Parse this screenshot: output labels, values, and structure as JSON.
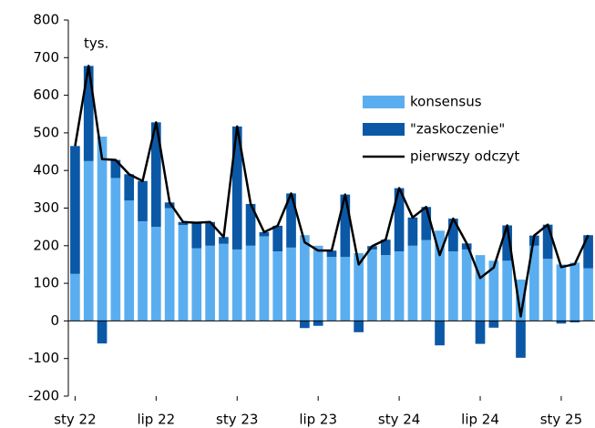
{
  "chart_data": {
    "type": "bar",
    "annotation": "tys.",
    "categories": [
      "sty 22",
      null,
      null,
      null,
      null,
      null,
      "lip 22",
      null,
      null,
      null,
      null,
      null,
      "sty 23",
      null,
      null,
      null,
      null,
      null,
      "lip 23",
      null,
      null,
      null,
      null,
      null,
      "sty 24",
      null,
      null,
      null,
      null,
      null,
      "lip 24",
      null,
      null,
      null,
      null,
      null,
      "sty 25",
      null,
      null
    ],
    "series": [
      {
        "name": "konsensus",
        "color": "#5aaef0",
        "type": "bar",
        "values": [
          125,
          425,
          490,
          380,
          320,
          265,
          250,
          300,
          255,
          193,
          200,
          205,
          190,
          200,
          225,
          185,
          195,
          228,
          200,
          170,
          170,
          180,
          190,
          175,
          185,
          200,
          215,
          240,
          185,
          190,
          175,
          160,
          160,
          110,
          200,
          165,
          150,
          155,
          140
        ]
      },
      {
        "name": "\"zaskoczenie\"",
        "color": "#0b58a6",
        "type": "bar",
        "values": [
          340,
          253,
          -60,
          48,
          70,
          107,
          278,
          15,
          8,
          68,
          63,
          18,
          327,
          111,
          11,
          68,
          144,
          -19,
          -13,
          17,
          166,
          -30,
          9,
          41,
          168,
          75,
          88,
          -65,
          87,
          16,
          -61,
          -18,
          94,
          -98,
          27,
          91,
          -7,
          -4,
          88
        ]
      },
      {
        "name": "pierwszy odczyt",
        "color": "#000000",
        "type": "line",
        "values": [
          465,
          678,
          430,
          428,
          390,
          372,
          528,
          315,
          263,
          261,
          263,
          223,
          517,
          311,
          236,
          253,
          339,
          209,
          187,
          187,
          336,
          150,
          199,
          216,
          353,
          275,
          303,
          175,
          272,
          206,
          114,
          142,
          254,
          12,
          227,
          256,
          143,
          151,
          228
        ]
      }
    ],
    "ylim": [
      -200,
      800
    ],
    "yticks": [
      -200,
      -100,
      0,
      100,
      200,
      300,
      400,
      500,
      600,
      700,
      800
    ],
    "legend": "right"
  }
}
